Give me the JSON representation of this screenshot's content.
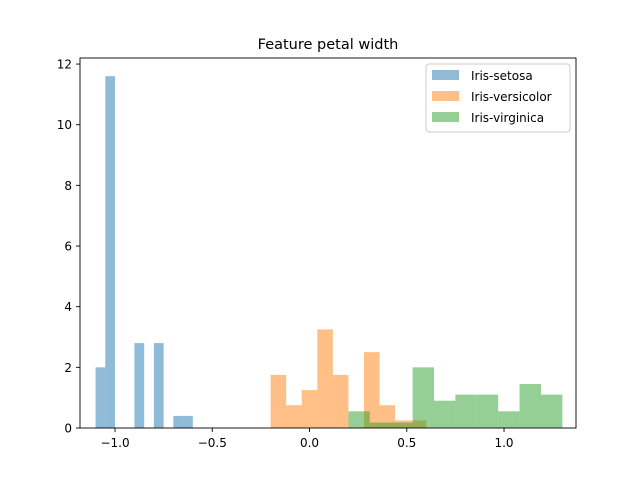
{
  "chart_data": {
    "type": "histogram",
    "title": "Feature petal width",
    "xlabel": "",
    "ylabel": "",
    "xlim": [
      -1.18,
      1.37
    ],
    "ylim": [
      0,
      12.2
    ],
    "grid": false,
    "legend_position": "top-right",
    "x_ticks": [
      {
        "value": -1.0,
        "label": "−1.0"
      },
      {
        "value": -0.5,
        "label": "−0.5"
      },
      {
        "value": 0.0,
        "label": "0.0"
      },
      {
        "value": 0.5,
        "label": "0.5"
      },
      {
        "value": 1.0,
        "label": "1.0"
      }
    ],
    "y_ticks": [
      {
        "value": 0,
        "label": "0"
      },
      {
        "value": 2,
        "label": "2"
      },
      {
        "value": 4,
        "label": "4"
      },
      {
        "value": 6,
        "label": "6"
      },
      {
        "value": 8,
        "label": "8"
      },
      {
        "value": 10,
        "label": "10"
      },
      {
        "value": 12,
        "label": "12"
      }
    ],
    "series": [
      {
        "name": "Iris-setosa",
        "color": "#1f77b4",
        "opacity": 0.5,
        "bins": [
          {
            "x0": -1.1,
            "x1": -1.05,
            "y": 2.0
          },
          {
            "x0": -1.05,
            "x1": -1.0,
            "y": 11.6
          },
          {
            "x0": -0.9,
            "x1": -0.85,
            "y": 2.8
          },
          {
            "x0": -0.8,
            "x1": -0.75,
            "y": 2.8
          },
          {
            "x0": -0.7,
            "x1": -0.65,
            "y": 0.4
          },
          {
            "x0": -0.65,
            "x1": -0.6,
            "y": 0.4
          }
        ]
      },
      {
        "name": "Iris-versicolor",
        "color": "#ff7f0e",
        "opacity": 0.5,
        "bins": [
          {
            "x0": -0.2,
            "x1": -0.12,
            "y": 1.75
          },
          {
            "x0": -0.12,
            "x1": -0.04,
            "y": 0.75
          },
          {
            "x0": -0.04,
            "x1": 0.04,
            "y": 1.25
          },
          {
            "x0": 0.04,
            "x1": 0.12,
            "y": 3.25
          },
          {
            "x0": 0.12,
            "x1": 0.2,
            "y": 1.75
          },
          {
            "x0": 0.28,
            "x1": 0.36,
            "y": 2.5
          },
          {
            "x0": 0.36,
            "x1": 0.44,
            "y": 0.75
          },
          {
            "x0": 0.44,
            "x1": 0.52,
            "y": 0.25
          },
          {
            "x0": 0.52,
            "x1": 0.6,
            "y": 0.25
          }
        ]
      },
      {
        "name": "Iris-virginica",
        "color": "#2ca02c",
        "opacity": 0.5,
        "bins": [
          {
            "x0": 0.2,
            "x1": 0.31,
            "y": 0.55
          },
          {
            "x0": 0.31,
            "x1": 0.42,
            "y": 0.18
          },
          {
            "x0": 0.42,
            "x1": 0.53,
            "y": 0.18
          },
          {
            "x0": 0.53,
            "x1": 0.64,
            "y": 2.0
          },
          {
            "x0": 0.64,
            "x1": 0.75,
            "y": 0.9
          },
          {
            "x0": 0.75,
            "x1": 0.86,
            "y": 1.1
          },
          {
            "x0": 0.86,
            "x1": 0.97,
            "y": 1.1
          },
          {
            "x0": 0.97,
            "x1": 1.08,
            "y": 0.55
          },
          {
            "x0": 1.08,
            "x1": 1.19,
            "y": 1.45
          },
          {
            "x0": 1.19,
            "x1": 1.3,
            "y": 1.1
          }
        ]
      }
    ]
  }
}
